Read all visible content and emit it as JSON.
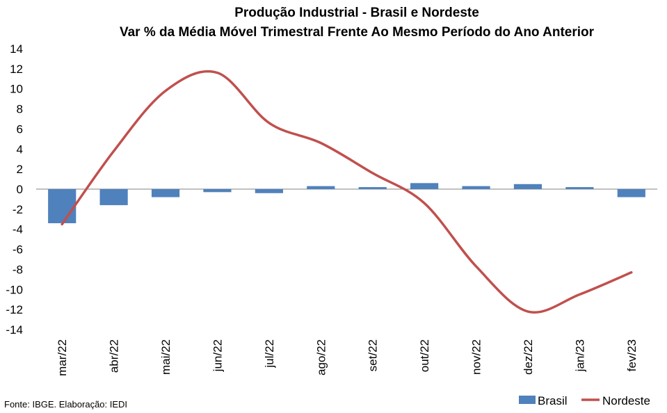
{
  "chart_data": {
    "type": "bar",
    "title": "Produção Industrial - Brasil e Nordeste",
    "subtitle": "Var % da Média Móvel Trimestral Frente Ao Mesmo Período do Ano Anterior",
    "categories": [
      "mar/22",
      "abr/22",
      "mai/22",
      "jun/22",
      "jul/22",
      "ago/22",
      "set/22",
      "out/22",
      "nov/22",
      "dez/22",
      "jan/23",
      "fev/23"
    ],
    "series": [
      {
        "name": "Brasil",
        "type": "bar",
        "color": "#4F81BD",
        "values": [
          -3.4,
          -1.6,
          -0.8,
          -0.3,
          -0.4,
          0.3,
          0.2,
          0.6,
          0.3,
          0.5,
          0.2,
          -0.8
        ]
      },
      {
        "name": "Nordeste",
        "type": "line",
        "color": "#C0504D",
        "values": [
          -3.5,
          3.8,
          9.8,
          11.6,
          6.6,
          4.6,
          1.6,
          -1.4,
          -7.7,
          -12.2,
          -10.5,
          -8.3
        ]
      }
    ],
    "ylim": [
      -14,
      14
    ],
    "yticks": [
      14,
      12,
      10,
      8,
      6,
      4,
      2,
      0,
      -2,
      -4,
      -6,
      -8,
      -10,
      -12,
      -14
    ],
    "grid": false,
    "legend": "bottom-right",
    "source": "Fonte: IBGE. Elaboração: IEDI"
  }
}
